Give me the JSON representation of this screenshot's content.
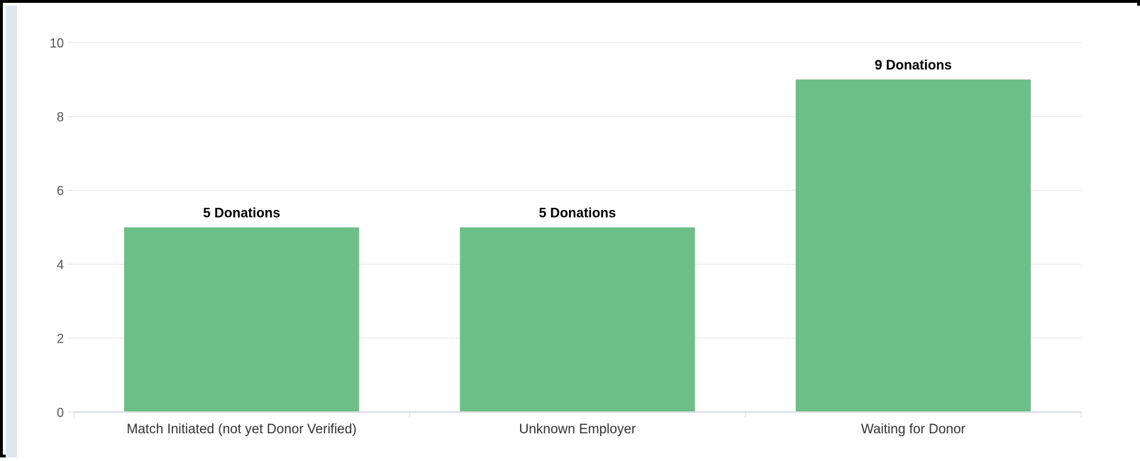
{
  "chart_data": {
    "type": "bar",
    "title": "",
    "xlabel": "",
    "ylabel": "",
    "categories": [
      "Match Initiated (not yet Donor Verified)",
      "Unknown Employer",
      "Waiting for Donor"
    ],
    "values": [
      5,
      5,
      9
    ],
    "data_labels": [
      "5 Donations",
      "5 Donations",
      "9 Donations"
    ],
    "ylim": [
      0,
      10
    ],
    "yticks": [
      "0",
      "2",
      "4",
      "6",
      "8",
      "10"
    ],
    "grid": true,
    "legend": "none",
    "colors": {
      "bar": "#6cbf87",
      "grid": "#e3e6ea",
      "axis": "#d9dde2",
      "tick_text": "#555555",
      "label_text": "#000000"
    }
  }
}
